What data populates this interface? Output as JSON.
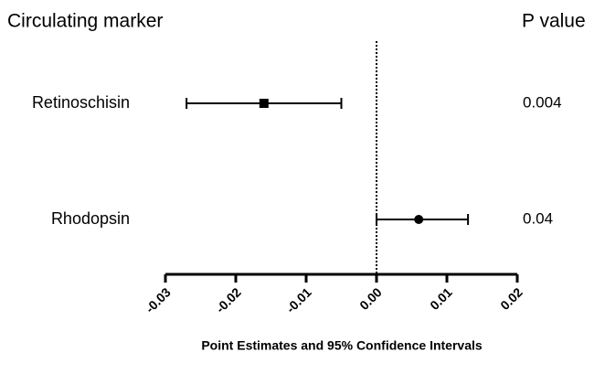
{
  "chart_data": {
    "type": "forest",
    "row_header": "Circulating marker",
    "p_header": "P value",
    "x_label": "Point Estimates and 95% Confidence Intervals",
    "categories": [
      "Retinoschisin",
      "Rhodopsin"
    ],
    "values": [
      -0.016,
      0.006
    ],
    "lower": [
      -0.027,
      0.0
    ],
    "upper": [
      -0.005,
      0.013
    ],
    "markers": [
      "square",
      "circle"
    ],
    "p_values": [
      0.004,
      0.04
    ],
    "color": "#000000",
    "reference_line": 0,
    "xlim": [
      -0.03,
      0.02
    ],
    "xticks": [
      -0.03,
      -0.02,
      -0.01,
      {
        "value": 0,
        "label": "0.00"
      },
      0.01,
      0.02
    ]
  }
}
